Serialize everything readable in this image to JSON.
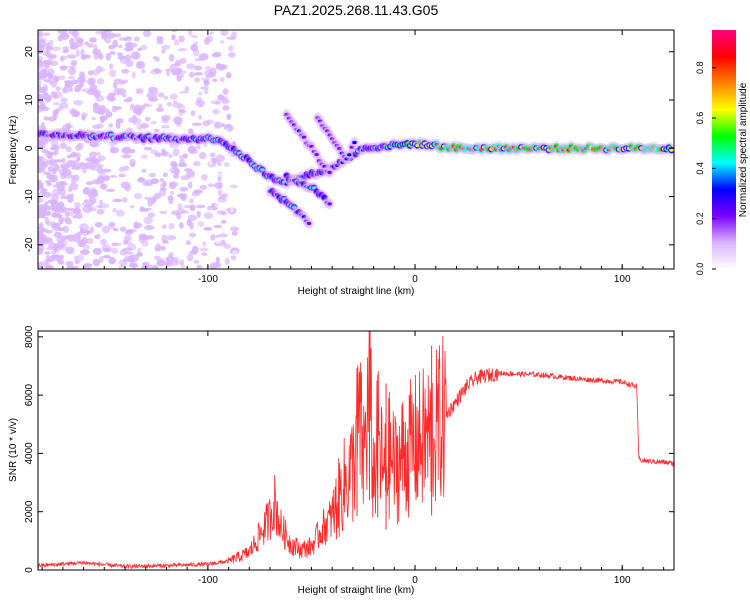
{
  "title": "PAZ1.2025.268.11.43.G05",
  "chart_data": [
    {
      "type": "heatmap",
      "title": "PAZ1.2025.268.11.43.G05",
      "xlabel": "Height of straight line (km)",
      "ylabel": "Frequency (Hz)",
      "xlim": [
        -182,
        125
      ],
      "ylim": [
        -25,
        24.5
      ],
      "xticks": [
        -100,
        0,
        100
      ],
      "xtick_labels": [
        "-100",
        "0",
        "100"
      ],
      "yticks": [
        -20,
        -10,
        0,
        10,
        20
      ],
      "ytick_labels": [
        "-20",
        "-10",
        "0",
        "10",
        "20"
      ],
      "colorbar": {
        "label": "Normalized spectral amplitude",
        "range": [
          0,
          0.95
        ],
        "ticks": [
          0,
          0.2,
          0.4,
          0.6,
          0.8
        ],
        "tick_labels": [
          "0.0",
          "0.2",
          "0.4",
          "0.6",
          "0.8"
        ],
        "colors": [
          "#ffffff",
          "#d9b3ff",
          "#7a00ff",
          "#0000ff",
          "#00ffff",
          "#00ff00",
          "#ffff00",
          "#ff8000",
          "#ff0000",
          "#ff0080"
        ]
      },
      "ridges": [
        {
          "name": "main-line",
          "points": [
            [
              -182,
              3
            ],
            [
              -120,
              2
            ],
            [
              -95,
              2
            ],
            [
              -85,
              -1
            ],
            [
              -70,
              -6
            ],
            [
              -62,
              -7
            ],
            [
              -40,
              -4
            ],
            [
              -25,
              0
            ],
            [
              0,
              1
            ],
            [
              20,
              0
            ],
            [
              125,
              0
            ]
          ],
          "amplitude": [
            0.3,
            0.35,
            0.4,
            0.45,
            0.4,
            0.35,
            0.3,
            0.35,
            0.55,
            0.85,
            0.75
          ]
        },
        {
          "name": "branch-a",
          "points": [
            [
              -62,
              7
            ],
            [
              -50,
              0
            ],
            [
              -40,
              -6
            ]
          ],
          "amplitude": [
            0.2,
            0.25,
            0.2
          ]
        },
        {
          "name": "branch-b",
          "points": [
            [
              -62,
              -6
            ],
            [
              -50,
              -8
            ],
            [
              -40,
              -12
            ]
          ],
          "amplitude": [
            0.3,
            0.35,
            0.3
          ]
        },
        {
          "name": "branch-c",
          "points": [
            [
              -47,
              6
            ],
            [
              -33,
              -2
            ],
            [
              -28,
              2
            ]
          ],
          "amplitude": [
            0.2,
            0.25,
            0.25
          ]
        },
        {
          "name": "branch-d",
          "points": [
            [
              -70,
              -9
            ],
            [
              -62,
              -11
            ],
            [
              -50,
              -16
            ]
          ],
          "amplitude": [
            0.3,
            0.35,
            0.25
          ]
        }
      ]
    },
    {
      "type": "line",
      "xlabel": "Height of straight line (km)",
      "ylabel": "SNR (10 * v/v)",
      "xlim": [
        -182,
        125
      ],
      "ylim": [
        0,
        8200
      ],
      "xticks": [
        -100,
        0,
        100
      ],
      "xtick_labels": [
        "-100",
        "0",
        "100"
      ],
      "yticks": [
        0,
        2000,
        4000,
        6000,
        8000
      ],
      "ytick_labels": [
        "0",
        "2000",
        "4000",
        "6000",
        "8000"
      ],
      "color": "#ff2a2a",
      "series": [
        {
          "name": "SNR",
          "x": [
            -182,
            -160,
            -150,
            -140,
            -120,
            -100,
            -90,
            -80,
            -75,
            -70,
            -68,
            -65,
            -60,
            -55,
            -50,
            -45,
            -40,
            -35,
            -30,
            -27,
            -25,
            -22,
            -20,
            -18,
            -15,
            -12,
            -10,
            -5,
            0,
            5,
            10,
            15,
            20,
            25,
            30,
            40,
            60,
            80,
            100,
            107,
            108,
            110,
            120,
            125
          ],
          "y": [
            150,
            250,
            180,
            120,
            150,
            200,
            300,
            600,
            1200,
            1800,
            2400,
            1500,
            900,
            700,
            800,
            1400,
            1800,
            2800,
            3500,
            5200,
            3800,
            6000,
            3000,
            4500,
            3200,
            4000,
            3500,
            4000,
            4300,
            4500,
            4800,
            5300,
            5800,
            6300,
            6600,
            6750,
            6700,
            6550,
            6450,
            6300,
            3800,
            3750,
            3700,
            3650
          ]
        }
      ],
      "spikes": [
        {
          "x": -22,
          "y": 8200
        },
        {
          "x": -28,
          "y": 6500
        },
        {
          "x": -18,
          "y": 6700
        },
        {
          "x": 8,
          "y": 7700
        },
        {
          "x": -14,
          "y": 6400
        }
      ]
    }
  ]
}
